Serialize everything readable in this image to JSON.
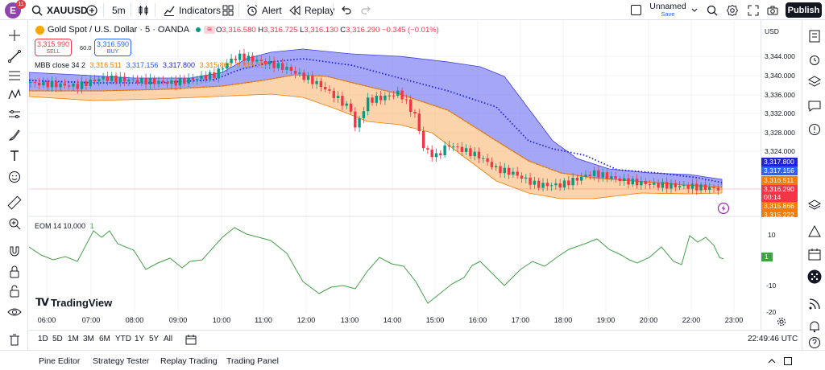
{
  "topbar": {
    "avatar_letter": "E",
    "avatar_badge": "11",
    "symbol": "XAUUSD",
    "interval": "5m",
    "indicators": "Indicators",
    "alert": "Alert",
    "replay": "Replay",
    "layout_name": "Unnamed",
    "layout_status": "Save",
    "publish": "Publish"
  },
  "legend": {
    "symbol_title": "Gold Spot / U.S. Dollar · 5 · OANDA",
    "ohlc": {
      "o_label": "O",
      "o": "3,316.580",
      "h_label": "H",
      "h": "3,316.725",
      "l_label": "L",
      "l": "3,316.130",
      "c_label": "C",
      "c": "3,316.290",
      "change": "−0.345 (−0.01%)"
    },
    "sell_price": "3,315.990",
    "sell_label": "SELL",
    "spread": "60.0",
    "buy_price": "3,316.590",
    "buy_label": "BUY",
    "mbb_name": "MBB close 34 2",
    "mbb_values": [
      "3,316.511",
      "3,317.156",
      "3,317.800",
      "3,315.866",
      "3,315.222"
    ],
    "eom_name": "EOM 14 10,000",
    "eom_value": "1"
  },
  "price_scale": {
    "currency": "USD",
    "ticks": [
      "3,344.000",
      "3,340.000",
      "3,336.000",
      "3,332.000",
      "3,328.000",
      "3,324.000"
    ],
    "badges": [
      {
        "text": "3,317.800",
        "color": "#1e22d9"
      },
      {
        "text": "3,317.156",
        "color": "#2962ff"
      },
      {
        "text": "3,316.511",
        "color": "#f57c00"
      },
      {
        "text": "3,316.290",
        "color": "#f23645"
      },
      {
        "text": "00:14",
        "color": "#f23645"
      },
      {
        "text": "3,315.866",
        "color": "#f57c00"
      },
      {
        "text": "3,315.222",
        "color": "#f57c00"
      }
    ],
    "eom_ticks": [
      "10",
      "-10",
      "-20"
    ],
    "eom_badge": "1"
  },
  "time_axis": [
    "06:00",
    "07:00",
    "08:00",
    "09:00",
    "10:00",
    "11:00",
    "12:00",
    "13:00",
    "14:00",
    "15:00",
    "16:00",
    "17:00",
    "18:00",
    "19:00",
    "20:00",
    "22:00",
    "23:00"
  ],
  "range_bar": {
    "ranges": [
      "1D",
      "5D",
      "1M",
      "3M",
      "6M",
      "YTD",
      "1Y",
      "5Y",
      "All"
    ],
    "clock": "22:49:46 UTC"
  },
  "bottom_tabs": [
    "Pine Editor",
    "Strategy Tester",
    "Replay Trading",
    "Trading Panel"
  ],
  "branding": "TradingView",
  "colors": {
    "up": "#089981",
    "down": "#f23645",
    "upper_band": "#3d3de6",
    "lower_band": "#f57c00",
    "eom": "#43a047"
  }
}
